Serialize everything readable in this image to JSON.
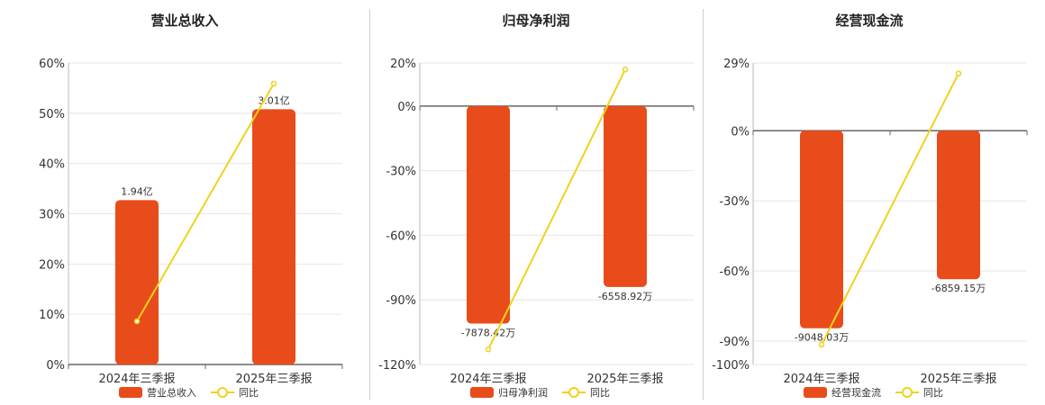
{
  "colors": {
    "bar": "#e84c1b",
    "line": "#f0d21c",
    "grid": "#e6e6e6",
    "axis": "#666666"
  },
  "chart_data": [
    {
      "type": "bar",
      "title": "营业总收入",
      "categories": [
        "2024年三季报",
        "2025年三季报"
      ],
      "ylim": [
        0,
        60
      ],
      "y_ticks": [
        0,
        10,
        20,
        30,
        40,
        50,
        60
      ],
      "y_tick_labels": [
        "0%",
        "10%",
        "20%",
        "30%",
        "40%",
        "50%",
        "60%"
      ],
      "series": [
        {
          "name": "营业总收入",
          "kind": "bar",
          "values": [
            32.7,
            50.8
          ],
          "labels": [
            "1.94亿",
            "3.01亿"
          ]
        },
        {
          "name": "同比",
          "kind": "line",
          "values": [
            8.6,
            55.9
          ]
        }
      ],
      "legend": "bottom-center",
      "grid": true
    },
    {
      "type": "bar",
      "title": "归母净利润",
      "categories": [
        "2024年三季报",
        "2025年三季报"
      ],
      "ylim": [
        -120,
        20
      ],
      "y_ticks": [
        -120,
        -90,
        -60,
        -30,
        0,
        20
      ],
      "y_tick_labels": [
        "-120%",
        "-90%",
        "-60%",
        "-30%",
        "0%",
        "20%"
      ],
      "series": [
        {
          "name": "归母净利润",
          "kind": "bar",
          "values": [
            -101,
            -84
          ],
          "labels": [
            "-7878.42万",
            "-6558.92万"
          ]
        },
        {
          "name": "同比",
          "kind": "line",
          "values": [
            -113,
            17
          ]
        }
      ],
      "legend": "bottom-center",
      "grid": true
    },
    {
      "type": "bar",
      "title": "经营现金流",
      "categories": [
        "2024年三季报",
        "2025年三季报"
      ],
      "ylim": [
        -100,
        29
      ],
      "y_ticks": [
        -100,
        -90,
        -60,
        -30,
        0,
        29
      ],
      "y_tick_labels": [
        "-100%",
        "-90%",
        "-60%",
        "-30%",
        "0%",
        "29%"
      ],
      "series": [
        {
          "name": "经营现金流",
          "kind": "bar",
          "values": [
            -84.5,
            -63.5
          ],
          "labels": [
            "-9048.03万",
            "-6859.15万"
          ]
        },
        {
          "name": "同比",
          "kind": "line",
          "values": [
            -91.5,
            24.5
          ]
        }
      ],
      "legend": "bottom-center",
      "grid": true
    }
  ]
}
